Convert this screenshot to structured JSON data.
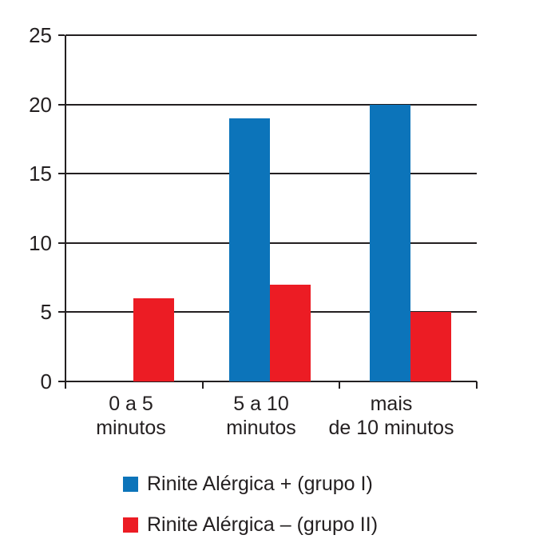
{
  "chart_data": {
    "type": "bar",
    "title": "",
    "xlabel": "",
    "ylabel": "",
    "categories": [
      [
        "0 a 5",
        "minutos"
      ],
      [
        "5 a 10",
        "minutos"
      ],
      [
        "mais",
        "de 10 minutos"
      ]
    ],
    "series": [
      {
        "name": "Rinite Alérgica + (grupo I)",
        "color": "#0c74ba",
        "values": [
          0,
          19,
          20
        ]
      },
      {
        "name": "Rinite Alérgica – (grupo II)",
        "color": "#ec1c24",
        "values": [
          6,
          7,
          5
        ]
      }
    ],
    "yticks": [
      0,
      5,
      10,
      15,
      20,
      25
    ],
    "ylim": [
      0,
      25
    ],
    "grid": true,
    "legend_position": "bottom",
    "axis_color": "#231f20",
    "text_color": "#231f20"
  }
}
